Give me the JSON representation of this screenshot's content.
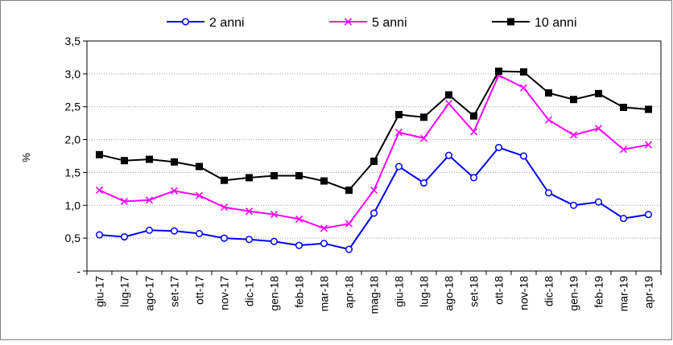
{
  "chart_data": {
    "type": "line",
    "title": "",
    "xlabel": "",
    "ylabel": "%",
    "ylim": [
      0,
      3.5
    ],
    "y_ticks": [
      {
        "value": 0,
        "label": "-"
      },
      {
        "value": 0.5,
        "label": "0,5"
      },
      {
        "value": 1.0,
        "label": "1,0"
      },
      {
        "value": 1.5,
        "label": "1,5"
      },
      {
        "value": 2.0,
        "label": "2,0"
      },
      {
        "value": 2.5,
        "label": "2,5"
      },
      {
        "value": 3.0,
        "label": "3,0"
      },
      {
        "value": 3.5,
        "label": "3,5"
      }
    ],
    "grid": true,
    "legend_position": "top",
    "categories": [
      "giu-17",
      "lug-17",
      "ago-17",
      "set-17",
      "ott-17",
      "nov-17",
      "dic-17",
      "gen-18",
      "feb-18",
      "mar-18",
      "apr-18",
      "mag-18",
      "giu-18",
      "lug-18",
      "ago-18",
      "set-18",
      "ott-18",
      "nov-18",
      "dic-18",
      "gen-19",
      "feb-19",
      "mar-19",
      "apr-19"
    ],
    "series": [
      {
        "name": "2 anni",
        "color": "#0000ff",
        "marker": "circle",
        "values": [
          0.55,
          0.52,
          0.62,
          0.61,
          0.57,
          0.5,
          0.48,
          0.45,
          0.39,
          0.42,
          0.33,
          0.88,
          1.59,
          1.34,
          1.76,
          1.42,
          1.88,
          1.75,
          1.19,
          1.0,
          1.05,
          0.8,
          0.86
        ]
      },
      {
        "name": "5 anni",
        "color": "#ff00ff",
        "marker": "x",
        "values": [
          1.23,
          1.06,
          1.08,
          1.22,
          1.15,
          0.97,
          0.91,
          0.86,
          0.79,
          0.65,
          0.72,
          1.23,
          2.11,
          2.02,
          2.55,
          2.12,
          2.98,
          2.79,
          2.3,
          2.07,
          2.17,
          1.85,
          1.92
        ]
      },
      {
        "name": "10 anni",
        "color": "#000000",
        "marker": "square",
        "values": [
          1.77,
          1.68,
          1.7,
          1.66,
          1.59,
          1.38,
          1.42,
          1.45,
          1.45,
          1.37,
          1.23,
          1.67,
          2.38,
          2.34,
          2.68,
          2.36,
          3.04,
          3.03,
          2.71,
          2.61,
          2.7,
          2.49,
          2.46
        ]
      }
    ]
  }
}
